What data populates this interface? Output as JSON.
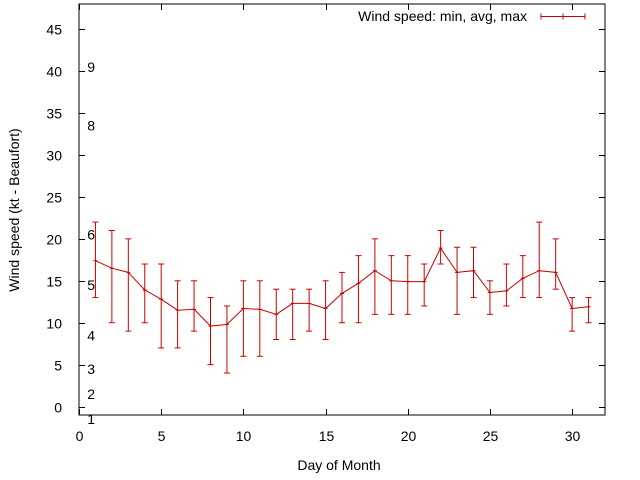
{
  "chart_data": {
    "type": "line",
    "xlabel": "Day of Month",
    "ylabel": "Wind speed (kt - Beaufort)",
    "xlim": [
      0,
      32
    ],
    "ylim": [
      -1,
      48
    ],
    "xticks": [
      0,
      5,
      10,
      15,
      20,
      25,
      30
    ],
    "yticks": [
      0,
      5,
      10,
      15,
      20,
      25,
      30,
      35,
      40,
      45
    ],
    "grid": false,
    "legend_position": "top-right",
    "series_color": "#cc0000",
    "beaufort_scale": [
      {
        "label": "1",
        "y": -1.5
      },
      {
        "label": "2",
        "y": 1.5
      },
      {
        "label": "3",
        "y": 4.5
      },
      {
        "label": "4",
        "y": 8.5
      },
      {
        "label": "5",
        "y": 14.5
      },
      {
        "label": "6",
        "y": 20.5
      },
      {
        "label": "8",
        "y": 33.5
      },
      {
        "label": "9",
        "y": 40.5
      }
    ],
    "series": [
      {
        "name": "Wind speed: min, avg, max",
        "x": [
          1,
          2,
          3,
          4,
          5,
          6,
          7,
          8,
          9,
          10,
          11,
          12,
          13,
          14,
          15,
          16,
          17,
          18,
          19,
          20,
          21,
          22,
          23,
          24,
          25,
          26,
          27,
          28,
          29,
          30,
          31
        ],
        "avg": [
          17.4,
          16.5,
          16.0,
          13.9,
          12.8,
          11.5,
          11.6,
          9.6,
          9.8,
          11.7,
          11.6,
          11.0,
          12.3,
          12.3,
          11.7,
          13.5,
          14.7,
          16.2,
          15.0,
          14.9,
          14.9,
          18.9,
          16.0,
          16.2,
          13.6,
          13.8,
          15.3,
          16.2,
          16.0,
          11.7,
          11.9
        ],
        "min": [
          13,
          10,
          9,
          10,
          7,
          7,
          9,
          5,
          4,
          6,
          6,
          8,
          8,
          9,
          8,
          10,
          10,
          11,
          11,
          11,
          12,
          17,
          11,
          13,
          11,
          12,
          13,
          13,
          14,
          9,
          10
        ],
        "max": [
          22,
          21,
          20,
          17,
          17,
          15,
          15,
          13,
          12,
          15,
          15,
          14,
          14,
          14,
          15,
          16,
          18,
          20,
          18,
          18,
          17,
          21,
          19,
          19,
          15,
          17,
          18,
          22,
          20,
          13,
          13
        ]
      }
    ]
  }
}
